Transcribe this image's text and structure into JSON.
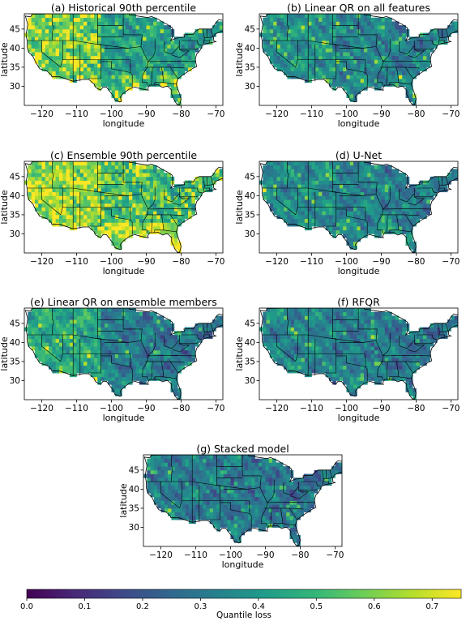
{
  "chart_data": [
    {
      "type": "heatmap",
      "title": "(a) Historical 90th percentile",
      "xlabel": "longitude",
      "ylabel": "latitude",
      "xlim": [
        -125,
        -68
      ],
      "ylim": [
        25,
        49
      ],
      "xticks": [
        -120,
        -110,
        -100,
        -90,
        -80,
        -70
      ],
      "yticks": [
        30,
        35,
        40,
        45
      ],
      "regional_loss": {
        "west": 0.55,
        "central": 0.42,
        "east": 0.4,
        "south": 0.5
      }
    },
    {
      "type": "heatmap",
      "title": "(b) Linear QR on all features",
      "xlabel": "longitude",
      "ylabel": "",
      "xlim": [
        -125,
        -68
      ],
      "ylim": [
        25,
        49
      ],
      "xticks": [
        -120,
        -110,
        -100,
        -90,
        -80,
        -70
      ],
      "yticks": [
        30,
        35,
        40,
        45
      ],
      "regional_loss": {
        "west": 0.38,
        "central": 0.33,
        "east": 0.31,
        "south": 0.35
      }
    },
    {
      "type": "heatmap",
      "title": "(c) Ensemble 90th percentile",
      "xlabel": "longitude",
      "ylabel": "latitude",
      "xlim": [
        -125,
        -68
      ],
      "ylim": [
        25,
        49
      ],
      "xticks": [
        -120,
        -110,
        -100,
        -90,
        -80,
        -70
      ],
      "yticks": [
        30,
        35,
        40,
        45
      ],
      "regional_loss": {
        "west": 0.6,
        "central": 0.48,
        "east": 0.46,
        "south": 0.62
      }
    },
    {
      "type": "heatmap",
      "title": "(d) U-Net",
      "xlabel": "longitude",
      "ylabel": "",
      "xlim": [
        -125,
        -68
      ],
      "ylim": [
        25,
        49
      ],
      "xticks": [
        -120,
        -110,
        -100,
        -90,
        -80,
        -70
      ],
      "yticks": [
        30,
        35,
        40,
        45
      ],
      "regional_loss": {
        "west": 0.36,
        "central": 0.33,
        "east": 0.31,
        "south": 0.36
      }
    },
    {
      "type": "heatmap",
      "title": "(e) Linear QR on ensemble members",
      "xlabel": "longitude",
      "ylabel": "latitude",
      "xlim": [
        -125,
        -68
      ],
      "ylim": [
        25,
        49
      ],
      "xticks": [
        -120,
        -110,
        -100,
        -90,
        -80,
        -70
      ],
      "yticks": [
        30,
        35,
        40,
        45
      ],
      "regional_loss": {
        "west": 0.45,
        "central": 0.31,
        "east": 0.29,
        "south": 0.33
      }
    },
    {
      "type": "heatmap",
      "title": "(f) RFQR",
      "xlabel": "longitude",
      "ylabel": "",
      "xlim": [
        -125,
        -68
      ],
      "ylim": [
        25,
        49
      ],
      "xticks": [
        -120,
        -110,
        -100,
        -90,
        -80,
        -70
      ],
      "yticks": [
        30,
        35,
        40,
        45
      ],
      "regional_loss": {
        "west": 0.34,
        "central": 0.31,
        "east": 0.29,
        "south": 0.33
      }
    },
    {
      "type": "heatmap",
      "title": "(g) Stacked model",
      "xlabel": "longitude",
      "ylabel": "latitude",
      "xlim": [
        -125,
        -68
      ],
      "ylim": [
        25,
        49
      ],
      "xticks": [
        -120,
        -110,
        -100,
        -90,
        -80,
        -70
      ],
      "yticks": [
        30,
        35,
        40,
        45
      ],
      "regional_loss": {
        "west": 0.31,
        "central": 0.3,
        "east": 0.28,
        "south": 0.31
      }
    }
  ],
  "colorbar": {
    "label": "Quantile loss",
    "range": [
      0.0,
      0.75
    ],
    "ticks": [
      "0.0",
      "0.1",
      "0.2",
      "0.3",
      "0.4",
      "0.5",
      "0.6",
      "0.7"
    ],
    "colormap": "viridis",
    "colors": [
      "#440154",
      "#482878",
      "#3e4a89",
      "#31688e",
      "#26828e",
      "#1f9e89",
      "#35b779",
      "#6ece58",
      "#b5de2b",
      "#fde725"
    ]
  },
  "colors": {
    "land_edge": "#000000",
    "no_data": "#ffffff"
  }
}
